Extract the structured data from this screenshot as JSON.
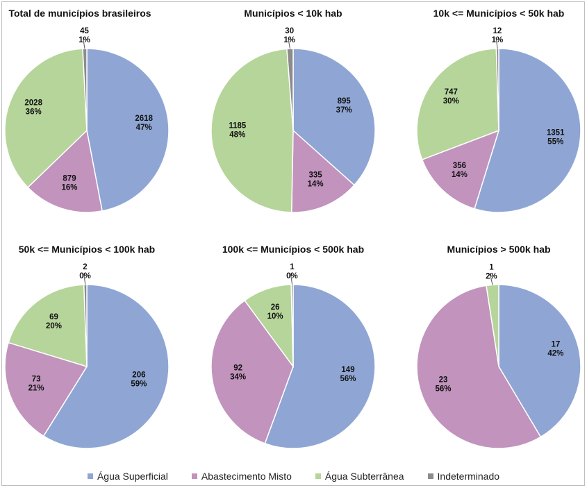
{
  "chart_data": [
    {
      "type": "pie",
      "title": "Total de municípios brasileiros",
      "slices": [
        {
          "category": "Água Superficial",
          "value": 2618,
          "percent": "47%"
        },
        {
          "category": "Abastecimento Misto",
          "value": 879,
          "percent": "16%"
        },
        {
          "category": "Água Subterrânea",
          "value": 2028,
          "percent": "36%"
        },
        {
          "category": "Indeterminado",
          "value": 45,
          "percent": "1%"
        }
      ]
    },
    {
      "type": "pie",
      "title": "Municípios < 10k hab",
      "slices": [
        {
          "category": "Água Superficial",
          "value": 895,
          "percent": "37%"
        },
        {
          "category": "Abastecimento Misto",
          "value": 335,
          "percent": "14%"
        },
        {
          "category": "Água Subterrânea",
          "value": 1185,
          "percent": "48%"
        },
        {
          "category": "Indeterminado",
          "value": 30,
          "percent": "1%"
        }
      ]
    },
    {
      "type": "pie",
      "title": "10k <= Municípios < 50k hab",
      "slices": [
        {
          "category": "Água Superficial",
          "value": 1351,
          "percent": "55%"
        },
        {
          "category": "Abastecimento Misto",
          "value": 356,
          "percent": "14%"
        },
        {
          "category": "Água Subterrânea",
          "value": 747,
          "percent": "30%"
        },
        {
          "category": "Indeterminado",
          "value": 12,
          "percent": "1%"
        }
      ]
    },
    {
      "type": "pie",
      "title": "50k <= Municípios < 100k hab",
      "slices": [
        {
          "category": "Água Superficial",
          "value": 206,
          "percent": "59%"
        },
        {
          "category": "Abastecimento Misto",
          "value": 73,
          "percent": "21%"
        },
        {
          "category": "Água Subterrânea",
          "value": 69,
          "percent": "20%"
        },
        {
          "category": "Indeterminado",
          "value": 2,
          "percent": "0%"
        }
      ]
    },
    {
      "type": "pie",
      "title": "100k <= Municípios < 500k hab",
      "slices": [
        {
          "category": "Água Superficial",
          "value": 149,
          "percent": "56%"
        },
        {
          "category": "Abastecimento Misto",
          "value": 92,
          "percent": "34%"
        },
        {
          "category": "Água Subterrânea",
          "value": 26,
          "percent": "10%"
        },
        {
          "category": "Indeterminado",
          "value": 1,
          "percent": "0%"
        }
      ]
    },
    {
      "type": "pie",
      "title": "Municípios > 500k hab",
      "slices": [
        {
          "category": "Água Superficial",
          "value": 17,
          "percent": "42%"
        },
        {
          "category": "Abastecimento Misto",
          "value": 23,
          "percent": "56%"
        },
        {
          "category": "Água Subterrânea",
          "value": 1,
          "percent": "2%"
        }
      ]
    }
  ],
  "legend": {
    "placement": "bottom",
    "items": [
      {
        "label": "Água Superficial",
        "color": "#8fa6d4"
      },
      {
        "label": "Abastecimento Misto",
        "color": "#c193bd"
      },
      {
        "label": "Água Subterrânea",
        "color": "#b6d59a"
      },
      {
        "label": "Indeterminado",
        "color": "#8c8c8c"
      }
    ]
  }
}
